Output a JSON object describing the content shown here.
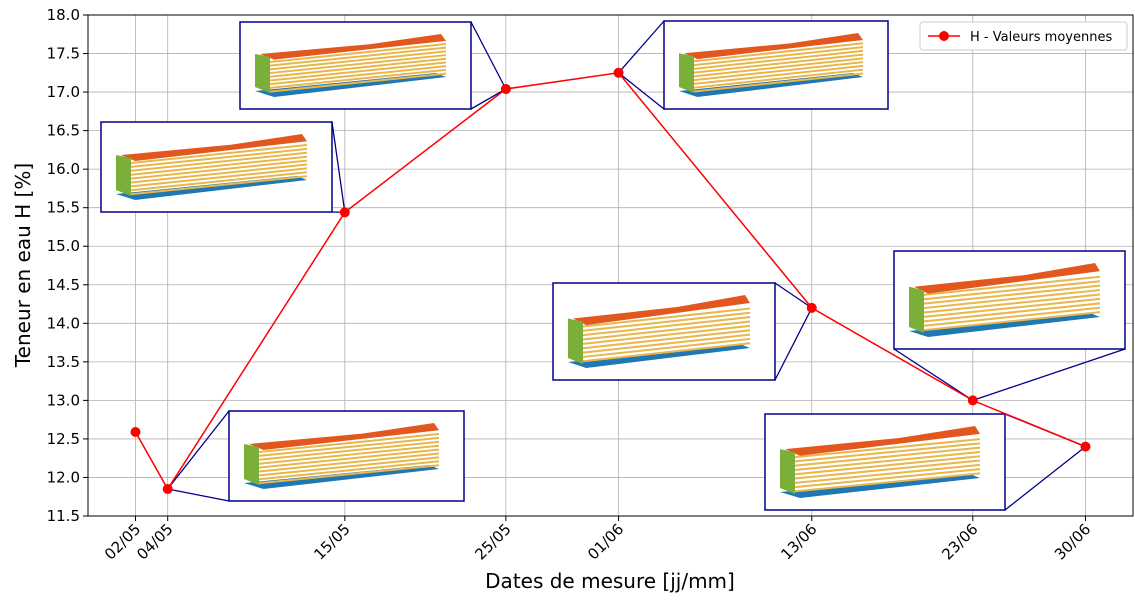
{
  "chart_data": {
    "type": "line",
    "xlabel": "Dates de mesure [jj/mm]",
    "ylabel": "Teneur en eau H [%]",
    "x": [
      "02/05",
      "04/05",
      "15/05",
      "25/05",
      "01/06",
      "13/06",
      "23/06",
      "30/06"
    ],
    "series": [
      {
        "name": "H - Valeurs moyennes",
        "color": "#ff0000",
        "values": [
          12.59,
          11.85,
          15.44,
          17.04,
          17.25,
          14.2,
          13.0,
          12.4
        ]
      }
    ],
    "ylim": [
      11.5,
      18.0
    ],
    "yticks": [
      {
        "value": 11.5,
        "label": "11.5"
      },
      {
        "value": 12.0,
        "label": "12.0"
      },
      {
        "value": 12.5,
        "label": "12.5"
      },
      {
        "value": 13.0,
        "label": "13.0"
      },
      {
        "value": 13.5,
        "label": "13.5"
      },
      {
        "value": 14.0,
        "label": "14.0"
      },
      {
        "value": 14.5,
        "label": "14.5"
      },
      {
        "value": 15.0,
        "label": "15.0"
      },
      {
        "value": 15.5,
        "label": "15.5"
      },
      {
        "value": 16.0,
        "label": "16.0"
      },
      {
        "value": 16.5,
        "label": "16.5"
      },
      {
        "value": 17.0,
        "label": "17.0"
      },
      {
        "value": 17.5,
        "label": "17.5"
      },
      {
        "value": 18.0,
        "label": "18.0"
      }
    ],
    "grid": true,
    "legend": "upper right"
  }
}
